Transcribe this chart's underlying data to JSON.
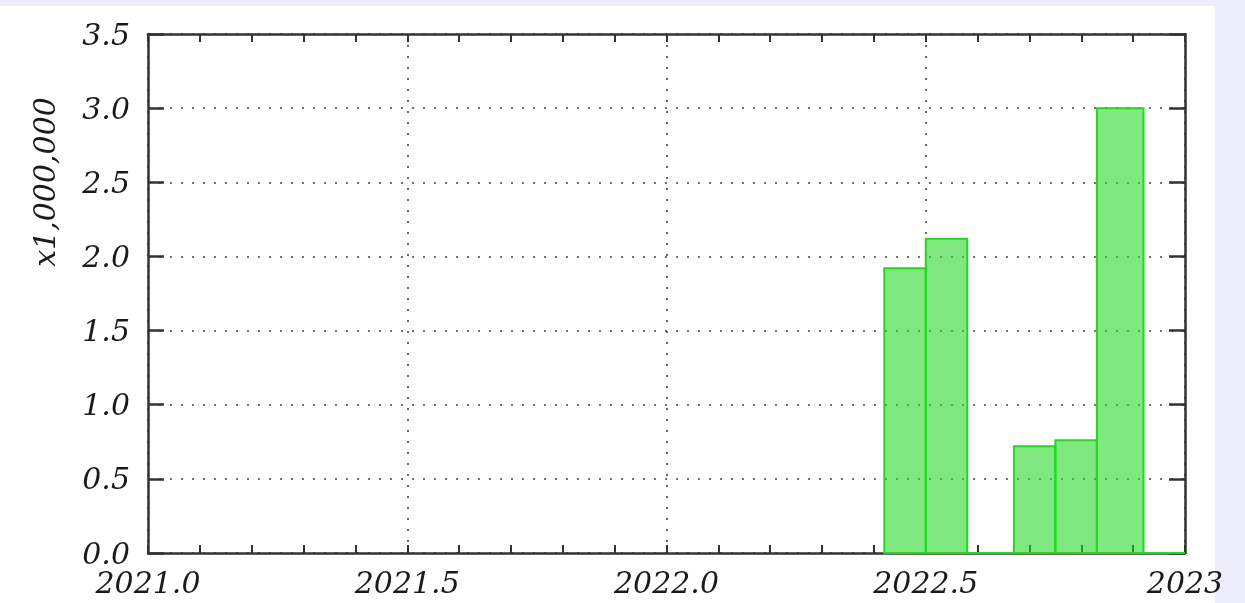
{
  "chart_data": {
    "type": "histogram",
    "ylabel": "x1,000,000",
    "color": "#22d822",
    "bins": [
      2022.42,
      2022.5,
      2022.58,
      2022.67,
      2022.75,
      2022.83,
      2022.92,
      2023
    ],
    "values": [
      1.92,
      2.12,
      0,
      0.72,
      0.76,
      3.0,
      0
    ],
    "xlim": [
      2021,
      2023
    ],
    "xticks": [
      {
        "value": 2021,
        "label": "2021.0"
      },
      {
        "value": 2021.1,
        "label": null
      },
      {
        "value": 2021.2,
        "label": null
      },
      {
        "value": 2021.3,
        "label": null
      },
      {
        "value": 2021.4,
        "label": null
      },
      2021.5,
      {
        "value": 2021.6,
        "label": null
      },
      {
        "value": 2021.7,
        "label": null
      },
      {
        "value": 2021.8,
        "label": null
      },
      {
        "value": 2021.9,
        "label": null
      },
      {
        "value": 2022,
        "label": "2022.0"
      },
      {
        "value": 2022.1,
        "label": null
      },
      {
        "value": 2022.2,
        "label": null
      },
      {
        "value": 2022.3,
        "label": null
      },
      {
        "value": 2022.4,
        "label": null
      },
      2022.5,
      {
        "value": 2022.6,
        "label": null
      },
      {
        "value": 2022.7,
        "label": null
      },
      {
        "value": 2022.8,
        "label": null
      },
      {
        "value": 2022.9,
        "label": null
      },
      2023
    ],
    "ylim": [
      0,
      3.5
    ],
    "yticks": [
      {
        "value": 0,
        "label": "0.0"
      },
      0.5,
      {
        "value": 1,
        "label": "1.0"
      },
      1.5,
      {
        "value": 2,
        "label": "2.0"
      },
      2.5,
      {
        "value": 3,
        "label": "3.0"
      },
      3.5
    ],
    "grid": true
  }
}
